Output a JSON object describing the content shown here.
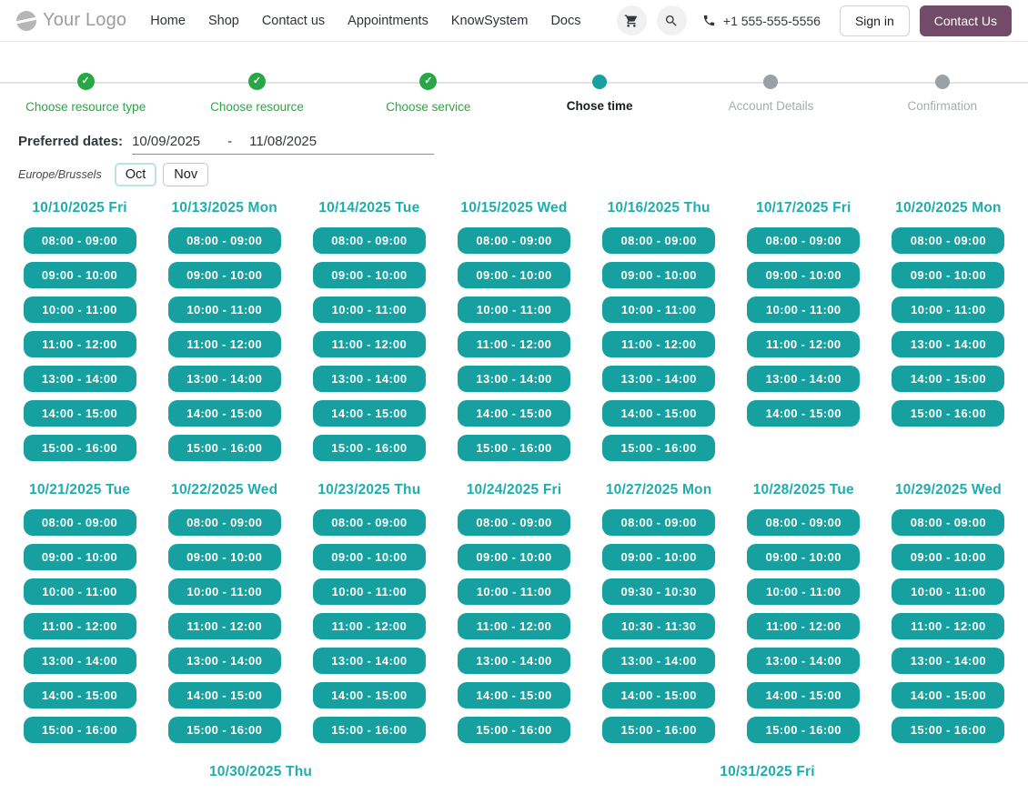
{
  "header": {
    "logo_text": "Your Logo",
    "nav": [
      {
        "label": "Home"
      },
      {
        "label": "Shop"
      },
      {
        "label": "Contact us"
      },
      {
        "label": "Appointments"
      },
      {
        "label": "KnowSystem"
      },
      {
        "label": "Docs"
      }
    ],
    "phone": "+1 555-555-5556",
    "sign_in_label": "Sign in",
    "contact_us_label": "Contact Us"
  },
  "stepper": {
    "steps": [
      {
        "label": "Choose resource type",
        "state": "done"
      },
      {
        "label": "Choose resource",
        "state": "done"
      },
      {
        "label": "Choose service",
        "state": "done"
      },
      {
        "label": "Chose time",
        "state": "active"
      },
      {
        "label": "Account Details",
        "state": "pending"
      },
      {
        "label": "Confirmation",
        "state": "pending"
      }
    ]
  },
  "filters": {
    "preferred_dates_label": "Preferred dates:",
    "date_from": "10/09/2025",
    "date_separator": "-",
    "date_to": "11/08/2025",
    "timezone": "Europe/Brussels",
    "month_buttons": [
      {
        "label": "Oct",
        "active": true
      },
      {
        "label": "Nov",
        "active": false
      }
    ]
  },
  "calendar": {
    "days": [
      {
        "date": "10/10/2025 Fri",
        "slots": [
          "08:00 - 09:00",
          "09:00 - 10:00",
          "10:00 - 11:00",
          "11:00 - 12:00",
          "13:00 - 14:00",
          "14:00 - 15:00",
          "15:00 - 16:00"
        ]
      },
      {
        "date": "10/13/2025 Mon",
        "slots": [
          "08:00 - 09:00",
          "09:00 - 10:00",
          "10:00 - 11:00",
          "11:00 - 12:00",
          "13:00 - 14:00",
          "14:00 - 15:00",
          "15:00 - 16:00"
        ]
      },
      {
        "date": "10/14/2025 Tue",
        "slots": [
          "08:00 - 09:00",
          "09:00 - 10:00",
          "10:00 - 11:00",
          "11:00 - 12:00",
          "13:00 - 14:00",
          "14:00 - 15:00",
          "15:00 - 16:00"
        ]
      },
      {
        "date": "10/15/2025 Wed",
        "slots": [
          "08:00 - 09:00",
          "09:00 - 10:00",
          "10:00 - 11:00",
          "11:00 - 12:00",
          "13:00 - 14:00",
          "14:00 - 15:00",
          "15:00 - 16:00"
        ]
      },
      {
        "date": "10/16/2025 Thu",
        "slots": [
          "08:00 - 09:00",
          "09:00 - 10:00",
          "10:00 - 11:00",
          "11:00 - 12:00",
          "13:00 - 14:00",
          "14:00 - 15:00",
          "15:00 - 16:00"
        ]
      },
      {
        "date": "10/17/2025 Fri",
        "slots": [
          "08:00 - 09:00",
          "09:00 - 10:00",
          "10:00 - 11:00",
          "11:00 - 12:00",
          "13:00 - 14:00",
          "14:00 - 15:00"
        ]
      },
      {
        "date": "10/20/2025 Mon",
        "slots": [
          "08:00 - 09:00",
          "09:00 - 10:00",
          "10:00 - 11:00",
          "13:00 - 14:00",
          "14:00 - 15:00",
          "15:00 - 16:00"
        ]
      },
      {
        "date": "10/21/2025 Tue",
        "slots": [
          "08:00 - 09:00",
          "09:00 - 10:00",
          "10:00 - 11:00",
          "11:00 - 12:00",
          "13:00 - 14:00",
          "14:00 - 15:00",
          "15:00 - 16:00"
        ]
      },
      {
        "date": "10/22/2025 Wed",
        "slots": [
          "08:00 - 09:00",
          "09:00 - 10:00",
          "10:00 - 11:00",
          "11:00 - 12:00",
          "13:00 - 14:00",
          "14:00 - 15:00",
          "15:00 - 16:00"
        ]
      },
      {
        "date": "10/23/2025 Thu",
        "slots": [
          "08:00 - 09:00",
          "09:00 - 10:00",
          "10:00 - 11:00",
          "11:00 - 12:00",
          "13:00 - 14:00",
          "14:00 - 15:00",
          "15:00 - 16:00"
        ]
      },
      {
        "date": "10/24/2025 Fri",
        "slots": [
          "08:00 - 09:00",
          "09:00 - 10:00",
          "10:00 - 11:00",
          "11:00 - 12:00",
          "13:00 - 14:00",
          "14:00 - 15:00",
          "15:00 - 16:00"
        ]
      },
      {
        "date": "10/27/2025 Mon",
        "slots": [
          "08:00 - 09:00",
          "09:00 - 10:00",
          "09:30 - 10:30",
          "10:30 - 11:30",
          "13:00 - 14:00",
          "14:00 - 15:00",
          "15:00 - 16:00"
        ]
      },
      {
        "date": "10/28/2025 Tue",
        "slots": [
          "08:00 - 09:00",
          "09:00 - 10:00",
          "10:00 - 11:00",
          "11:00 - 12:00",
          "13:00 - 14:00",
          "14:00 - 15:00",
          "15:00 - 16:00"
        ]
      },
      {
        "date": "10/29/2025 Wed",
        "slots": [
          "08:00 - 09:00",
          "09:00 - 10:00",
          "10:00 - 11:00",
          "11:00 - 12:00",
          "13:00 - 14:00",
          "14:00 - 15:00",
          "15:00 - 16:00"
        ]
      },
      {
        "date": "10/30/2025 Thu",
        "slots": []
      },
      {
        "date": "10/31/2025 Fri",
        "slots": []
      }
    ]
  },
  "colors": {
    "accent_teal": "#16A0A0",
    "teal_heading": "#1FADAD",
    "success_green": "#28A745",
    "brand_purple": "#714B67",
    "pending_gray": "#9AA0A6"
  }
}
